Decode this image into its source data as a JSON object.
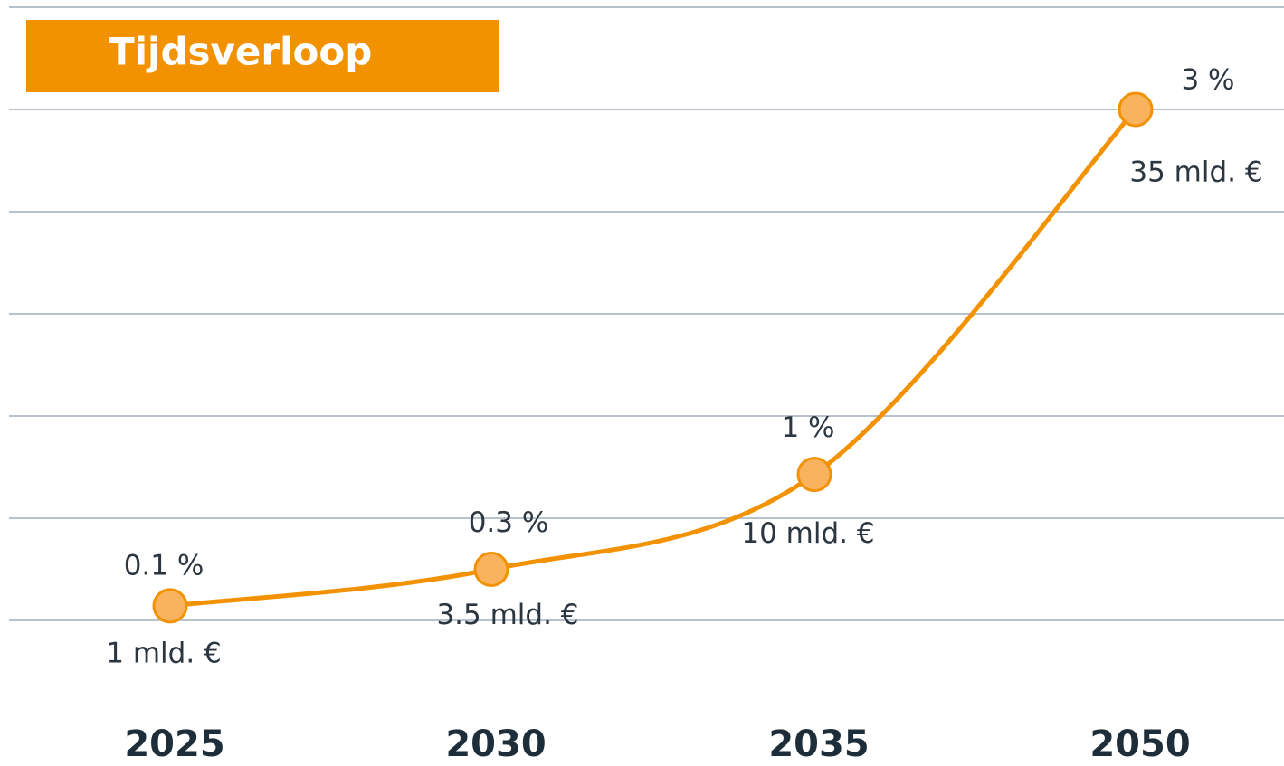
{
  "chart_data": {
    "type": "line",
    "title": "Tijdsverloop",
    "categories": [
      "2025",
      "2030",
      "2035",
      "2050"
    ],
    "series": [
      {
        "color": "#f39200",
        "marker_color": "#f9b25e",
        "values": [
          1,
          3.5,
          10,
          35
        ],
        "value_labels": [
          "1 mld. €",
          "3.5 mld. €",
          "10 mld. €",
          "35 mld. €"
        ],
        "share_labels": [
          "0.1 %",
          "0.3 %",
          "1 %",
          "3 %"
        ]
      }
    ],
    "ylim": [
      0,
      42
    ],
    "yticks": [
      0,
      7,
      14,
      21,
      28,
      35,
      42
    ],
    "grid": true
  }
}
